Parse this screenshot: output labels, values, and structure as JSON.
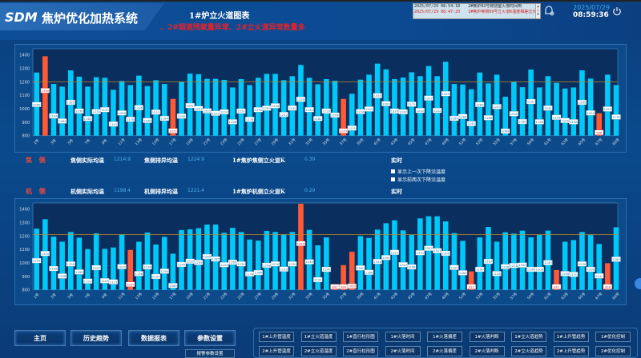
{
  "header": {
    "logo": "SDM",
    "system_name": "焦炉优化加热系统",
    "page_title": "1#炉立火道图表",
    "warning": "、2#烟道残氧量异常、2#立火道异常数量多",
    "alarms": [
      {
        "time": "2025/07/29 08:54:18",
        "text": "2#焦炉92号燃烧室火落时间到",
        "color": "#222222"
      },
      {
        "time": "2025/07/29 08:47:20",
        "text": "1#焦炉焦侧69号立火道K温度相差过大",
        "color": "#d42020"
      }
    ],
    "date": "2025/07/29",
    "time": "08:59:36",
    "icons": [
      "alarm-bell-icon",
      "power-icon"
    ]
  },
  "colors": {
    "normal_bar": "#00c8f8",
    "abnormal_bar": "#ff5a36",
    "reference_line": "#c08a20",
    "side_label": "#e84a3a",
    "value": "#4fb1ef"
  },
  "coke_side": {
    "label": "焦 侧",
    "actual_avg_label": "焦侧实际均温",
    "actual_avg": "1214.9",
    "row_avg_label": "焦侧排异均温",
    "row_avg": "1224.9",
    "k_label": "1#焦炉焦侧立火道K",
    "k": "0.39",
    "mode": "实时",
    "options": [
      "显示上一次下降沿温度",
      "显示前两次下降沿温度"
    ]
  },
  "machine_side": {
    "label": "机 侧",
    "actual_avg_label": "机侧实际均温",
    "actual_avg": "1198.4",
    "row_avg_label": "机侧排异均温",
    "row_avg": "1221.4",
    "k_label": "1#焦炉机侧立火道K",
    "k": "0.29",
    "mode": "实时"
  },
  "chart_data": [
    {
      "type": "bar",
      "ylim": [
        800,
        1400
      ],
      "yticks": [
        800,
        900,
        1000,
        1100,
        1200,
        1300,
        1400
      ],
      "reference_line": 1200,
      "grid": false,
      "categories_label_every": 2,
      "category_suffix": "号",
      "values": [
        1269,
        1390,
        1184,
        1164,
        1285,
        1238,
        1164,
        1234,
        1230,
        1141,
        1206,
        1176,
        1246,
        1168,
        1212,
        1184,
        1073,
        1200,
        1261,
        1257,
        1222,
        1222,
        1214,
        1158,
        1220,
        1176,
        1230,
        1259,
        1259,
        1212,
        1242,
        1325,
        1230,
        1182,
        1220,
        1208,
        1073,
        1111,
        1216,
        1253,
        1335,
        1293,
        1220,
        1232,
        1271,
        1242,
        1317,
        1242,
        1349,
        1184,
        1180,
        1145,
        1269,
        1188,
        1253,
        1089,
        1200,
        1160,
        1291,
        1158,
        1242,
        1192,
        1150,
        1158,
        1285,
        1224,
        966,
        1253,
        1176
      ],
      "abnormal": [
        2,
        17,
        37,
        67
      ]
    },
    {
      "type": "bar",
      "ylim": [
        800,
        1400
      ],
      "yticks": [
        800,
        900,
        1000,
        1100,
        1200,
        1300,
        1400
      ],
      "reference_line": 1212,
      "grid": false,
      "categories_label_every": 2,
      "category_suffix": "号",
      "values": [
        1255,
        1325,
        1196,
        1158,
        1230,
        1188,
        1103,
        1220,
        1105,
        1115,
        1210,
        1097,
        1158,
        1226,
        1137,
        1194,
        1069,
        1244,
        1250,
        1259,
        1285,
        1285,
        1224,
        1261,
        1230,
        1174,
        1166,
        1238,
        1230,
        1210,
        1230,
        1440,
        1246,
        1131,
        1190,
        842,
        984,
        1083,
        1200,
        1186,
        1248,
        1295,
        1317,
        1242,
        1208,
        1331,
        1347,
        1347,
        1309,
        1222,
        1164,
        937,
        1190,
        1267,
        1158,
        1228,
        1218,
        1240,
        1190,
        1208,
        1240,
        947,
        1158,
        1170,
        1230,
        1208,
        1141,
        998,
        1265
      ],
      "abnormal": [
        12,
        32,
        36,
        37,
        38,
        52,
        62,
        68
      ]
    }
  ],
  "nav": {
    "buttons": [
      "主页",
      "历史趋势",
      "数据报表",
      "参数设置"
    ],
    "sub_button": "报警参数设置",
    "quick_row1": [
      "1#上升管温度",
      "1#立火道温度",
      "1#直行柱形图",
      "1#火落时间",
      "1#火落偏差",
      "1#火落判断",
      "1#立火道趋势",
      "1#上升管趋势",
      "1#优化控制"
    ],
    "quick_row2": [
      "2#上升管温度",
      "2#立火道温度",
      "2#直行柱形图",
      "2#火落时间",
      "2#火落偏差",
      "2#火落判断",
      "2#立火道趋势",
      "2#上升管趋势",
      "2#优化控制"
    ]
  }
}
